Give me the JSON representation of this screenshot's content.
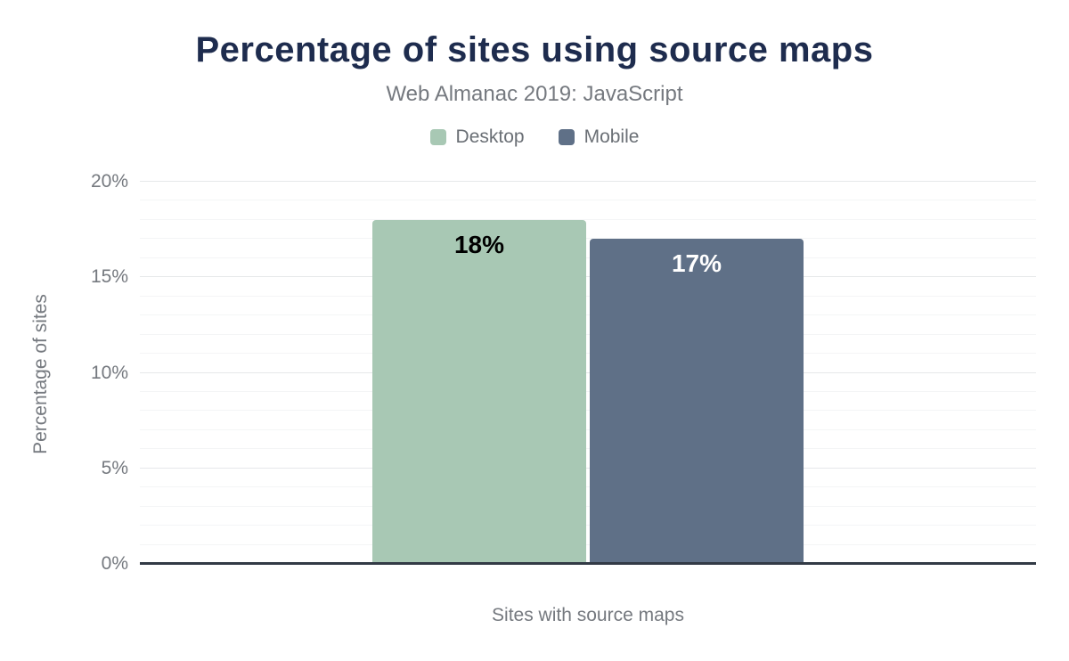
{
  "chart": {
    "title": "Percentage of sites using source maps",
    "subtitle": "Web Almanac 2019: JavaScript"
  },
  "chart_data": {
    "type": "bar",
    "title": "Percentage of sites using source maps",
    "subtitle": "Web Almanac 2019: JavaScript",
    "categories": [
      "Sites with source maps"
    ],
    "series": [
      {
        "name": "Desktop",
        "values": [
          18
        ],
        "data_label": "18%",
        "color": "#a8c8b4",
        "label_color": "#000000"
      },
      {
        "name": "Mobile",
        "values": [
          17
        ],
        "data_label": "17%",
        "color": "#5f7087",
        "label_color": "#ffffff"
      }
    ],
    "xlabel": "Sites with source maps",
    "ylabel": "Percentage of sites",
    "ylim": [
      0,
      20
    ],
    "y_ticks": [
      0,
      5,
      10,
      15,
      20
    ],
    "y_tick_labels": [
      "0%",
      "5%",
      "10%",
      "15%",
      "20%"
    ],
    "minor_grid_step": 1,
    "major_grid_step": 5,
    "grid": true,
    "legend_position": "top"
  },
  "colors": {
    "title": "#1e2c4e",
    "subtitle": "#75797f",
    "axis_text": "#75797f",
    "axis_line": "#323a45",
    "grid_major": "#e6e8ea",
    "grid_minor": "#f4f5f6",
    "background": "#ffffff"
  }
}
